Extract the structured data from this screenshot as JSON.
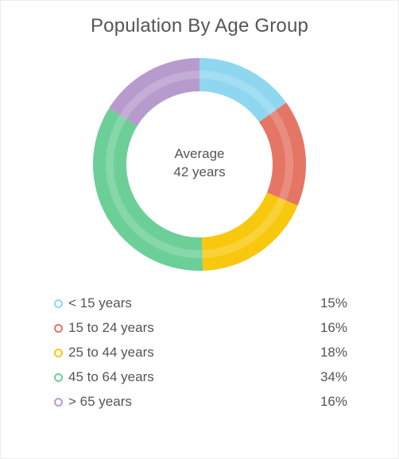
{
  "chart_data": {
    "type": "pie",
    "title": "Population By Age Group",
    "center_text": {
      "line1": "Average",
      "line2": "42 years"
    },
    "categories": [
      "< 15 years",
      "15 to 24 years",
      "25 to 44 years",
      "45 to 64 years",
      "> 65 years"
    ],
    "values": [
      15,
      16,
      18,
      34,
      16
    ],
    "value_labels": [
      "15%",
      "16%",
      "18%",
      "34%",
      "16%"
    ],
    "colors": [
      "#8fd7f0",
      "#e57565",
      "#f8c80f",
      "#6ccf97",
      "#b79bcd"
    ],
    "donut": true,
    "legend_position": "bottom"
  }
}
